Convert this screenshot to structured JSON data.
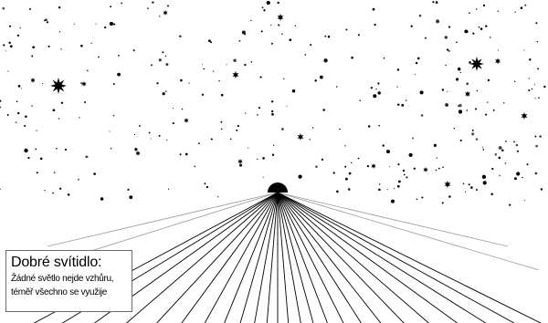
{
  "caption": {
    "title": "Dobré svítidlo:",
    "line1": "Žádné světlo nejde vzhůru,",
    "line2": "téměř všechno se využije"
  },
  "colors": {
    "background": "#ffffff",
    "ink": "#000000",
    "ground_rays": "#000000",
    "horizon_rays": "#999999",
    "caption_border": "#6b6b6b"
  },
  "icons": {
    "star": "star-icon",
    "bright_star": "bright-star-icon",
    "lamp": "street-lamp-icon"
  }
}
